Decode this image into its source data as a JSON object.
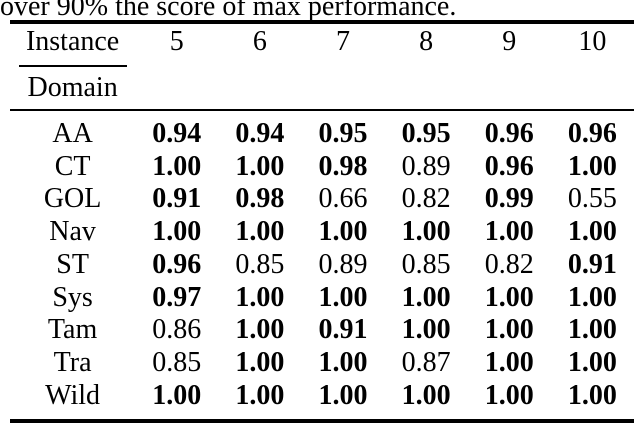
{
  "caption": "over 90% the score of max performance.",
  "colors": {
    "text": "#000000",
    "background": "#ffffff",
    "rule": "#000000"
  },
  "table": {
    "header": {
      "corner_top": "Instance",
      "corner_bottom": "Domain",
      "columns": [
        "5",
        "6",
        "7",
        "8",
        "9",
        "10"
      ]
    },
    "rows": [
      {
        "domain": "AA",
        "values": [
          "0.94",
          "0.94",
          "0.95",
          "0.95",
          "0.96",
          "0.96"
        ],
        "bold": [
          true,
          true,
          true,
          true,
          true,
          true
        ]
      },
      {
        "domain": "CT",
        "values": [
          "1.00",
          "1.00",
          "0.98",
          "0.89",
          "0.96",
          "1.00"
        ],
        "bold": [
          true,
          true,
          true,
          false,
          true,
          true
        ]
      },
      {
        "domain": "GOL",
        "values": [
          "0.91",
          "0.98",
          "0.66",
          "0.82",
          "0.99",
          "0.55"
        ],
        "bold": [
          true,
          true,
          false,
          false,
          true,
          false
        ]
      },
      {
        "domain": "Nav",
        "values": [
          "1.00",
          "1.00",
          "1.00",
          "1.00",
          "1.00",
          "1.00"
        ],
        "bold": [
          true,
          true,
          true,
          true,
          true,
          true
        ]
      },
      {
        "domain": "ST",
        "values": [
          "0.96",
          "0.85",
          "0.89",
          "0.85",
          "0.82",
          "0.91"
        ],
        "bold": [
          true,
          false,
          false,
          false,
          false,
          true
        ]
      },
      {
        "domain": "Sys",
        "values": [
          "0.97",
          "1.00",
          "1.00",
          "1.00",
          "1.00",
          "1.00"
        ],
        "bold": [
          true,
          true,
          true,
          true,
          true,
          true
        ]
      },
      {
        "domain": "Tam",
        "values": [
          "0.86",
          "1.00",
          "0.91",
          "1.00",
          "1.00",
          "1.00"
        ],
        "bold": [
          false,
          true,
          true,
          true,
          true,
          true
        ]
      },
      {
        "domain": "Tra",
        "values": [
          "0.85",
          "1.00",
          "1.00",
          "0.87",
          "1.00",
          "1.00"
        ],
        "bold": [
          false,
          true,
          true,
          false,
          true,
          true
        ]
      },
      {
        "domain": "Wild",
        "values": [
          "1.00",
          "1.00",
          "1.00",
          "1.00",
          "1.00",
          "1.00"
        ],
        "bold": [
          true,
          true,
          true,
          true,
          true,
          true
        ]
      }
    ]
  }
}
